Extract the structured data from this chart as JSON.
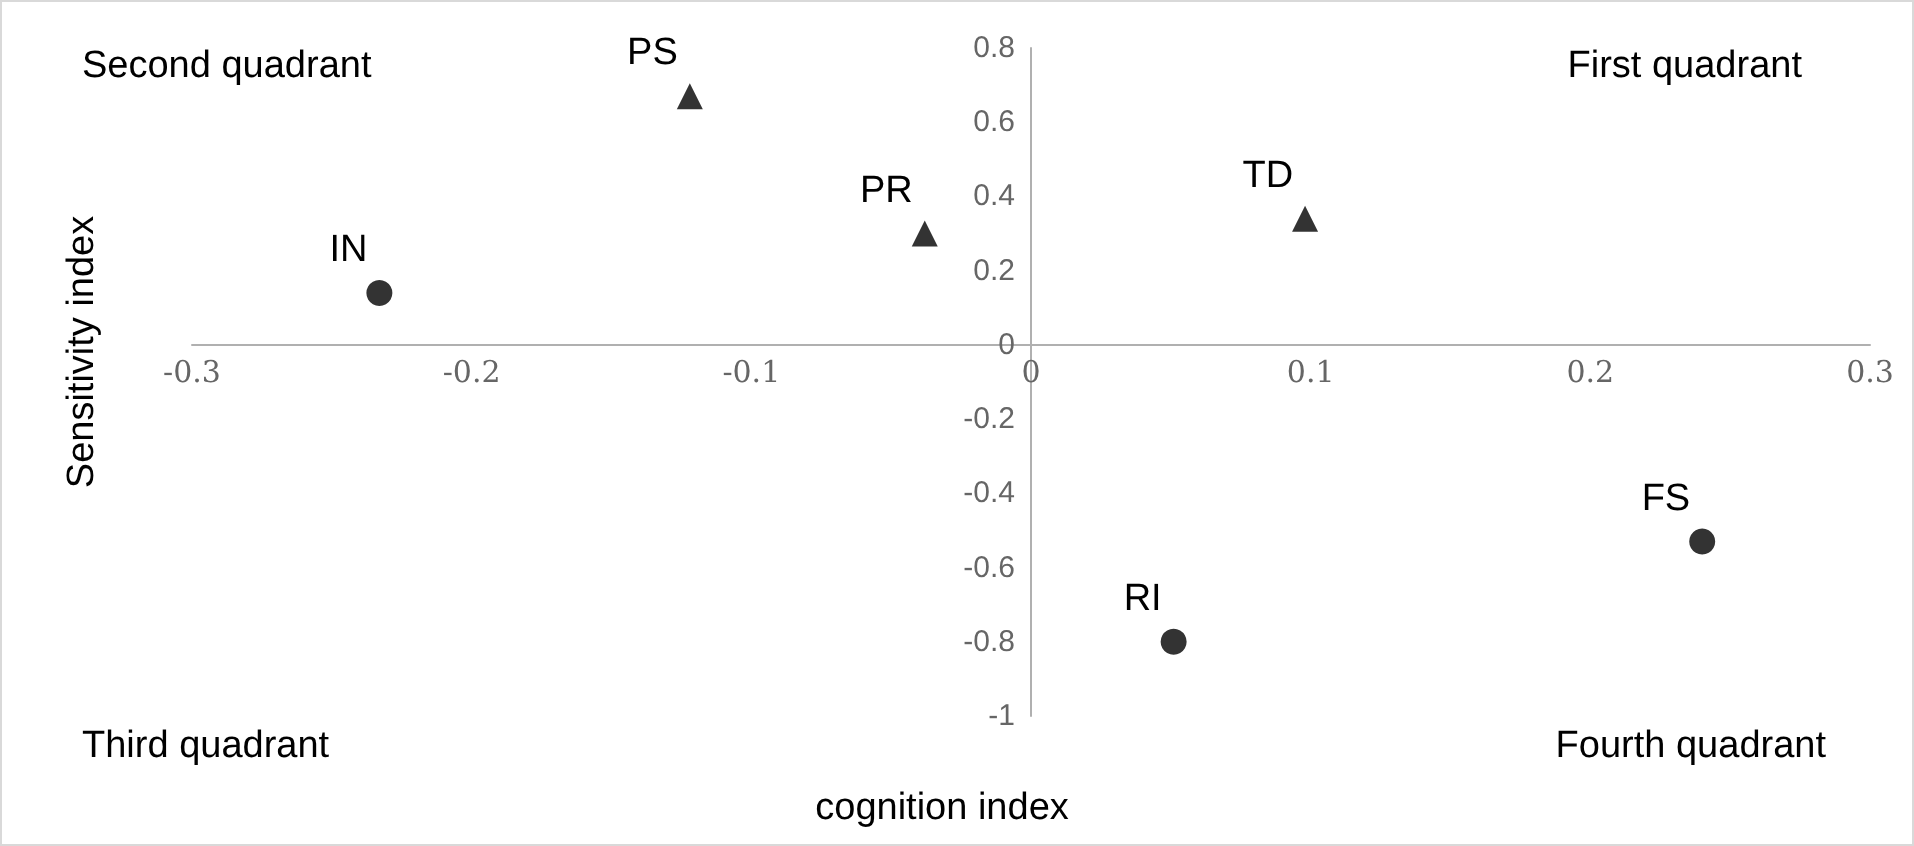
{
  "chart_data": {
    "type": "scatter",
    "xlabel": "cognition index",
    "ylabel": "Sensitivity index",
    "xlim": [
      -0.3,
      0.3
    ],
    "xticks": [
      -0.3,
      -0.2,
      -0.1,
      0,
      0.1,
      0.2,
      0.3
    ],
    "ylim": [
      -1,
      0.8
    ],
    "yticks": [
      -1,
      -0.8,
      -0.6,
      -0.4,
      -0.2,
      0,
      0.2,
      0.4,
      0.6,
      0.8
    ],
    "grid": false,
    "series": [
      {
        "color": "#000000",
        "marker": "circle",
        "x": [
          -0.233,
          0.24,
          0.051
        ],
        "values": [
          0.14,
          -0.53,
          -0.8
        ]
      },
      {
        "color": "#000000",
        "marker": "triangle",
        "x": [
          -0.122,
          -0.038,
          0.098
        ],
        "values": [
          0.67,
          0.3,
          0.34
        ]
      }
    ],
    "annotations": [
      "Second quadrant",
      "First quadrant",
      "Third quadrant",
      "Fourth quadrant",
      {
        "text": "IN",
        "x": -0.233,
        "y": 0.14
      },
      {
        "text": "FS",
        "x": 0.24,
        "y": -0.53
      },
      {
        "text": "RI",
        "x": 0.051,
        "y": -0.8
      },
      {
        "text": "PS",
        "x": -0.122,
        "y": 0.67
      },
      {
        "text": "PR",
        "x": -0.038,
        "y": 0.3
      },
      {
        "text": "TD",
        "x": 0.098,
        "y": 0.34
      }
    ]
  }
}
